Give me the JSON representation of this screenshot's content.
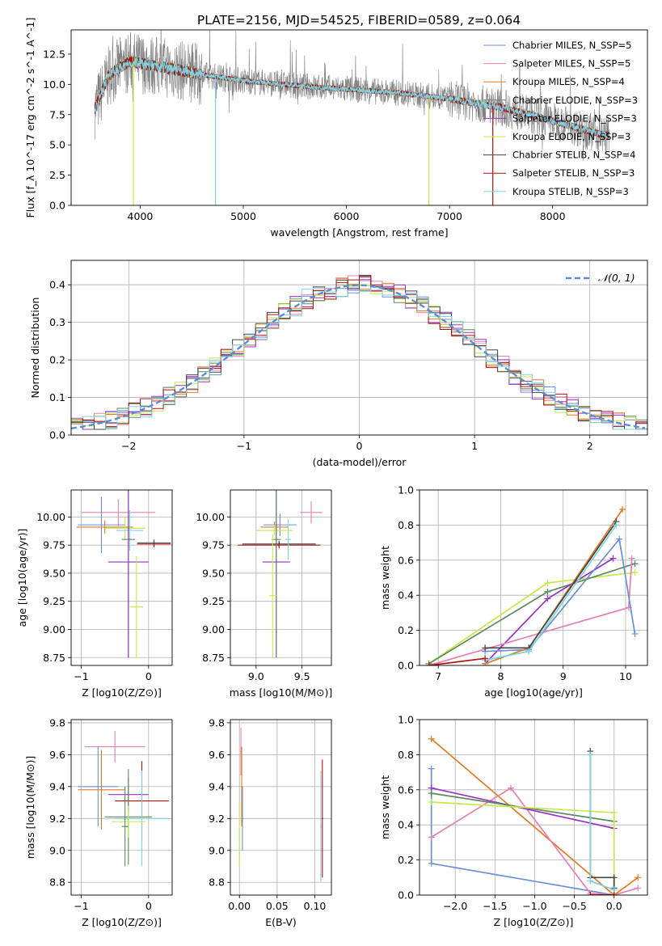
{
  "title": "PLATE=2156, MJD=54525, FIBERID=0589, z=0.064",
  "colors": {
    "chabrier_miles": "#6b8fd6",
    "salpeter_miles": "#e77fb3",
    "kroupa_miles": "#e07a1f",
    "chabrier_elodie": "#5c8a5c",
    "salpeter_elodie": "#9b30c8",
    "kroupa_elodie": "#c8e84a",
    "chabrier_stelib": "#444444",
    "salpeter_stelib": "#b01010",
    "kroupa_stelib": "#7fd3e0",
    "data": "#808080",
    "normal": "#5b8fd4",
    "grid": "#b0b0b0"
  },
  "chart_data": [
    {
      "id": "spectrum",
      "type": "line",
      "xlabel": "wavelength [Angstrom, rest frame]",
      "ylabel": "Flux [f_λ 10^-17 erg cm^-2 s^-1 A^-1]",
      "xlim": [
        3330,
        8920
      ],
      "ylim": [
        0,
        14.5
      ],
      "xticks": [
        "4000",
        "5000",
        "6000",
        "7000",
        "8000"
      ],
      "yticks": [
        "0.0",
        "2.5",
        "5.0",
        "7.5",
        "10.0",
        "12.5"
      ],
      "grid": false,
      "legend_position": "top-right",
      "series": [
        {
          "name": "Chabrier MILES, N_SSP=5",
          "color_key": "chabrier_miles"
        },
        {
          "name": "Salpeter MILES, N_SSP=5",
          "color_key": "salpeter_miles"
        },
        {
          "name": "Kroupa MILES, N_SSP=4",
          "color_key": "kroupa_miles"
        },
        {
          "name": "Chabrier ELODIE, N_SSP=3",
          "color_key": "chabrier_elodie"
        },
        {
          "name": "Salpeter ELODIE, N_SSP=3",
          "color_key": "salpeter_elodie"
        },
        {
          "name": "Kroupa ELODIE, N_SSP=3",
          "color_key": "kroupa_elodie"
        },
        {
          "name": "Chabrier STELIB, N_SSP=4",
          "color_key": "chabrier_stelib"
        },
        {
          "name": "Salpeter STELIB, N_SSP=3",
          "color_key": "salpeter_stelib"
        },
        {
          "name": "Kroupa STELIB, N_SSP=3",
          "color_key": "kroupa_stelib"
        }
      ],
      "continuum": {
        "x": [
          3560,
          3700,
          3900,
          4100,
          4300,
          4600,
          5000,
          5500,
          6000,
          6500,
          7000,
          7500,
          8000,
          8500
        ],
        "y": [
          8.0,
          10.8,
          11.9,
          11.6,
          11.3,
          10.8,
          10.3,
          9.9,
          9.6,
          9.3,
          8.8,
          8.1,
          7.0,
          5.8
        ]
      }
    },
    {
      "id": "residuals",
      "type": "line",
      "xlabel": "(data-model)/error",
      "ylabel": "Normed distribution",
      "xlim": [
        -2.5,
        2.5
      ],
      "ylim": [
        0,
        0.465
      ],
      "xticks": [
        "−2",
        "−1",
        "0",
        "1",
        "2"
      ],
      "yticks": [
        "0.0",
        "0.1",
        "0.2",
        "0.3",
        "0.4"
      ],
      "grid": true,
      "legend": "𝒩(0, 1)",
      "legend_position": "top-right",
      "normal": {
        "mean": 0,
        "sigma": 1
      }
    },
    {
      "id": "age_vs_Z",
      "type": "scatter",
      "xlabel": "Z [log10(Z/Z⊙)]",
      "ylabel": "age  [log10(age/yr)]",
      "xlim": [
        -1.15,
        0.35
      ],
      "ylim": [
        8.68,
        10.24
      ],
      "xticks": [
        "−1",
        "0"
      ],
      "yticks": [
        "8.75",
        "9.00",
        "9.25",
        "9.50",
        "9.75",
        "10.00"
      ],
      "grid": true,
      "points": [
        {
          "x": -0.45,
          "y": 10.04,
          "xerr": 0.55,
          "yerr": 0.12,
          "color_key": "salpeter_miles"
        },
        {
          "x": -0.7,
          "y": 9.93,
          "xerr": 0.35,
          "yerr": 0.25,
          "color_key": "chabrier_miles"
        },
        {
          "x": -0.65,
          "y": 9.91,
          "xerr": 0.42,
          "yerr": 0.06,
          "color_key": "kroupa_miles"
        },
        {
          "x": -0.35,
          "y": 9.9,
          "xerr": 0.3,
          "yerr": 0.1,
          "color_key": "kroupa_elodie"
        },
        {
          "x": -0.28,
          "y": 9.88,
          "xerr": 0.2,
          "yerr": 0.18,
          "color_key": "kroupa_stelib"
        },
        {
          "x": 0.08,
          "y": 9.76,
          "xerr": 0.25,
          "yerr": 0.03,
          "color_key": "salpeter_stelib"
        },
        {
          "x": 0.08,
          "y": 9.77,
          "xerr": 0.25,
          "yerr": 0.03,
          "color_key": "chabrier_stelib"
        },
        {
          "x": -0.3,
          "y": 9.8,
          "xerr": 0.1,
          "yerr": 1.05,
          "color_key": "chabrier_elodie"
        },
        {
          "x": -0.3,
          "y": 9.6,
          "xerr": 0.3,
          "yerr": 0.85,
          "color_key": "salpeter_elodie"
        },
        {
          "x": -0.18,
          "y": 9.2,
          "xerr": 0.1,
          "yerr": 0.45,
          "color_key": "kroupa_elodie"
        }
      ]
    },
    {
      "id": "age_vs_mass",
      "type": "scatter",
      "xlabel": "mass [log10(M/M⊙)]",
      "ylabel": "",
      "xlim": [
        8.72,
        9.82
      ],
      "ylim": [
        8.68,
        10.24
      ],
      "xticks": [
        "9.0",
        "9.5"
      ],
      "yticks": [
        "8.75",
        "9.00",
        "9.25",
        "9.50",
        "9.75",
        "10.00"
      ],
      "grid": true,
      "points": [
        {
          "x": 9.6,
          "y": 10.04,
          "xerr": 0.12,
          "yerr": 0.1,
          "color_key": "salpeter_miles"
        },
        {
          "x": 9.26,
          "y": 9.93,
          "xerr": 0.18,
          "yerr": 0.1,
          "color_key": "chabrier_miles"
        },
        {
          "x": 9.2,
          "y": 9.91,
          "xerr": 0.15,
          "yerr": 0.05,
          "color_key": "kroupa_miles"
        },
        {
          "x": 9.2,
          "y": 9.88,
          "xerr": 0.2,
          "yerr": 0.05,
          "color_key": "kroupa_elodie"
        },
        {
          "x": 9.25,
          "y": 9.76,
          "xerr": 0.4,
          "yerr": 0.03,
          "color_key": "chabrier_stelib"
        },
        {
          "x": 9.25,
          "y": 9.75,
          "xerr": 0.45,
          "yerr": 0.03,
          "color_key": "salpeter_stelib"
        },
        {
          "x": 9.22,
          "y": 9.6,
          "xerr": 0.15,
          "yerr": 0.85,
          "color_key": "salpeter_elodie"
        },
        {
          "x": 9.22,
          "y": 9.8,
          "xerr": 0.05,
          "yerr": 1.05,
          "color_key": "chabrier_elodie"
        },
        {
          "x": 9.18,
          "y": 9.3,
          "xerr": 0.04,
          "yerr": 0.55,
          "color_key": "kroupa_elodie"
        },
        {
          "x": 9.35,
          "y": 9.8,
          "xerr": 0.03,
          "yerr": 0.18,
          "color_key": "kroupa_stelib"
        }
      ]
    },
    {
      "id": "weight_vs_age",
      "type": "line",
      "xlabel": "age  [log10(age/yr)]",
      "ylabel": "mass weight",
      "xlim": [
        6.7,
        10.35
      ],
      "ylim": [
        0,
        1.0
      ],
      "xticks": [
        "7",
        "8",
        "9",
        "10"
      ],
      "yticks": [
        "0.0",
        "0.2",
        "0.4",
        "0.6",
        "0.8",
        "1.0"
      ],
      "grid": true,
      "series": [
        {
          "color_key": "kroupa_elodie",
          "x": [
            6.85,
            8.75,
            10.15
          ],
          "y": [
            0.01,
            0.47,
            0.53
          ]
        },
        {
          "color_key": "chabrier_elodie",
          "x": [
            6.85,
            8.75,
            10.15
          ],
          "y": [
            0.01,
            0.42,
            0.58
          ]
        },
        {
          "color_key": "salpeter_elodie",
          "x": [
            7.75,
            8.75,
            9.8
          ],
          "y": [
            0.01,
            0.38,
            0.61
          ]
        },
        {
          "color_key": "salpeter_miles",
          "x": [
            6.85,
            10.05,
            10.1
          ],
          "y": [
            0.0,
            0.33,
            0.61
          ]
        },
        {
          "color_key": "chabrier_miles",
          "x": [
            7.75,
            8.45,
            9.9,
            10.15
          ],
          "y": [
            0.08,
            0.09,
            0.72,
            0.18
          ]
        },
        {
          "color_key": "kroupa_miles",
          "x": [
            7.75,
            8.45,
            9.95
          ],
          "y": [
            0.01,
            0.1,
            0.89
          ]
        },
        {
          "color_key": "chabrier_stelib",
          "x": [
            7.75,
            8.45,
            9.85
          ],
          "y": [
            0.1,
            0.1,
            0.82
          ]
        },
        {
          "color_key": "kroupa_stelib",
          "x": [
            7.75,
            8.45,
            9.85
          ],
          "y": [
            0.03,
            0.08,
            0.8
          ]
        },
        {
          "color_key": "salpeter_stelib",
          "x": [
            6.85,
            7.75
          ],
          "y": [
            0.0,
            0.04
          ]
        }
      ]
    },
    {
      "id": "mass_vs_Z",
      "type": "scatter",
      "xlabel": "Z [log10(Z/Z⊙)]",
      "ylabel": "mass [log10(M/M⊙)]",
      "xlim": [
        -1.15,
        0.35
      ],
      "ylim": [
        8.72,
        9.82
      ],
      "xticks": [
        "−1",
        "0"
      ],
      "yticks": [
        "8.8",
        "9.0",
        "9.2",
        "9.4",
        "9.6",
        "9.8"
      ],
      "grid": true,
      "points": [
        {
          "x": -0.5,
          "y": 9.65,
          "xerr": 0.45,
          "yerr": 0.1,
          "color_key": "salpeter_miles"
        },
        {
          "x": -0.75,
          "y": 9.4,
          "xerr": 0.3,
          "yerr": 0.25,
          "color_key": "chabrier_miles"
        },
        {
          "x": -0.7,
          "y": 9.38,
          "xerr": 0.35,
          "yerr": 0.25,
          "color_key": "kroupa_miles"
        },
        {
          "x": -0.3,
          "y": 9.35,
          "xerr": 0.3,
          "yerr": 0.1,
          "color_key": "salpeter_elodie"
        },
        {
          "x": -0.1,
          "y": 9.31,
          "xerr": 0.4,
          "yerr": 0.25,
          "color_key": "salpeter_stelib"
        },
        {
          "x": -0.3,
          "y": 9.21,
          "xerr": 0.35,
          "yerr": 0.3,
          "color_key": "chabrier_elodie"
        },
        {
          "x": -0.1,
          "y": 9.2,
          "xerr": 0.4,
          "yerr": 0.3,
          "color_key": "kroupa_stelib"
        },
        {
          "x": -0.3,
          "y": 9.18,
          "xerr": 0.25,
          "yerr": 0.1,
          "color_key": "kroupa_elodie"
        },
        {
          "x": -0.35,
          "y": 9.15,
          "xerr": 0.05,
          "yerr": 0.25,
          "color_key": "chabrier_elodie"
        }
      ]
    },
    {
      "id": "mass_vs_ebv",
      "type": "scatter",
      "xlabel": "E(B-V)",
      "ylabel": "",
      "xlim": [
        -0.012,
        0.122
      ],
      "ylim": [
        8.72,
        9.82
      ],
      "xticks": [
        "0.00",
        "0.05",
        "0.10"
      ],
      "yticks": [
        "8.8",
        "9.0",
        "9.2",
        "9.4",
        "9.6",
        "9.8"
      ],
      "grid": true,
      "points": [
        {
          "x": 0.002,
          "y": 9.62,
          "xerr": 0.001,
          "yerr": 0.15,
          "color_key": "salpeter_miles"
        },
        {
          "x": 0.003,
          "y": 9.4,
          "xerr": 0.001,
          "yerr": 0.25,
          "color_key": "kroupa_miles"
        },
        {
          "x": 0.004,
          "y": 9.2,
          "xerr": 0.001,
          "yerr": 0.2,
          "color_key": "chabrier_miles"
        },
        {
          "x": 0.0,
          "y": 9.1,
          "xerr": 0.001,
          "yerr": 0.2,
          "color_key": "kroupa_elodie"
        },
        {
          "x": 0.11,
          "y": 9.2,
          "xerr": 0.001,
          "yerr": 0.37,
          "color_key": "salpeter_stelib"
        },
        {
          "x": 0.108,
          "y": 9.15,
          "xerr": 0.001,
          "yerr": 0.35,
          "color_key": "kroupa_stelib"
        }
      ]
    },
    {
      "id": "weight_vs_Z",
      "type": "line",
      "xlabel": "Z [log10(Z/Z⊙)]",
      "ylabel": "mass weight",
      "xlim": [
        -2.45,
        0.42
      ],
      "ylim": [
        0,
        1.0
      ],
      "xticks": [
        "−2.0",
        "−1.5",
        "−1.0",
        "−0.5",
        "0.0"
      ],
      "yticks": [
        "0.0",
        "0.2",
        "0.4",
        "0.6",
        "0.8",
        "1.0"
      ],
      "grid": true,
      "series": [
        {
          "color_key": "kroupa_miles",
          "x": [
            -2.3,
            0.0,
            0.3
          ],
          "y": [
            0.89,
            0.0,
            0.1
          ]
        },
        {
          "color_key": "chabrier_miles",
          "x": [
            -2.3,
            -2.3,
            0.0
          ],
          "y": [
            0.72,
            0.18,
            0.0
          ]
        },
        {
          "color_key": "salpeter_miles",
          "x": [
            -2.3,
            -1.3,
            -0.3,
            0.0,
            0.3
          ],
          "y": [
            0.33,
            0.61,
            0.01,
            0.0,
            0.04
          ]
        },
        {
          "color_key": "salpeter_elodie",
          "x": [
            -2.3,
            0.0
          ],
          "y": [
            0.61,
            0.38
          ]
        },
        {
          "color_key": "chabrier_elodie",
          "x": [
            -2.3,
            0.0
          ],
          "y": [
            0.58,
            0.42
          ]
        },
        {
          "color_key": "kroupa_elodie",
          "x": [
            -2.3,
            0.0,
            0.0
          ],
          "y": [
            0.53,
            0.47,
            0.0
          ]
        },
        {
          "color_key": "chabrier_stelib",
          "x": [
            -0.3,
            -0.3,
            0.0,
            0.0
          ],
          "y": [
            0.82,
            0.1,
            0.1,
            0.04
          ]
        },
        {
          "color_key": "kroupa_stelib",
          "x": [
            -0.3,
            -0.3,
            0.0
          ],
          "y": [
            0.8,
            0.08,
            0.03
          ]
        },
        {
          "color_key": "salpeter_stelib",
          "x": [
            -0.3,
            0.0
          ],
          "y": [
            0.0,
            0.0
          ]
        }
      ]
    }
  ]
}
